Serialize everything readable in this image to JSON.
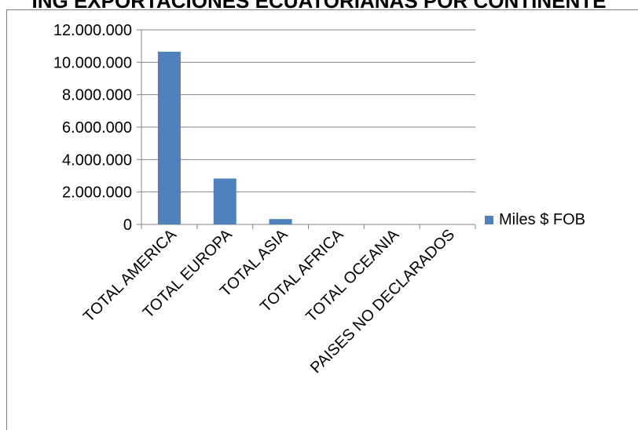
{
  "chart_data": {
    "type": "bar",
    "title": "ING EXPORTACIONES ECUATORIANAS POR CONTINENTE",
    "categories": [
      "TOTAL AMERICA",
      "TOTAL EUROPA",
      "TOTAL ASIA",
      "TOTAL AFRICA",
      "TOTAL OCEANIA",
      "PAISES NO DECLARADOS"
    ],
    "series": [
      {
        "name": "Miles $ FOB",
        "values": [
          10650000,
          2830000,
          330000,
          15000,
          8000,
          5000
        ]
      }
    ],
    "ylim": [
      0,
      12000000
    ],
    "yticks": [
      "12.000.000",
      "10.000.000",
      "8.000.000",
      "6.000.000",
      "4.000.000",
      "2.000.000",
      "0"
    ],
    "ytick_values": [
      12000000,
      10000000,
      8000000,
      6000000,
      4000000,
      2000000,
      0
    ],
    "grid": true,
    "legend_position": "right",
    "colors": {
      "bar": "#4f81bd",
      "grid": "#868686",
      "axis": "#868686"
    }
  }
}
